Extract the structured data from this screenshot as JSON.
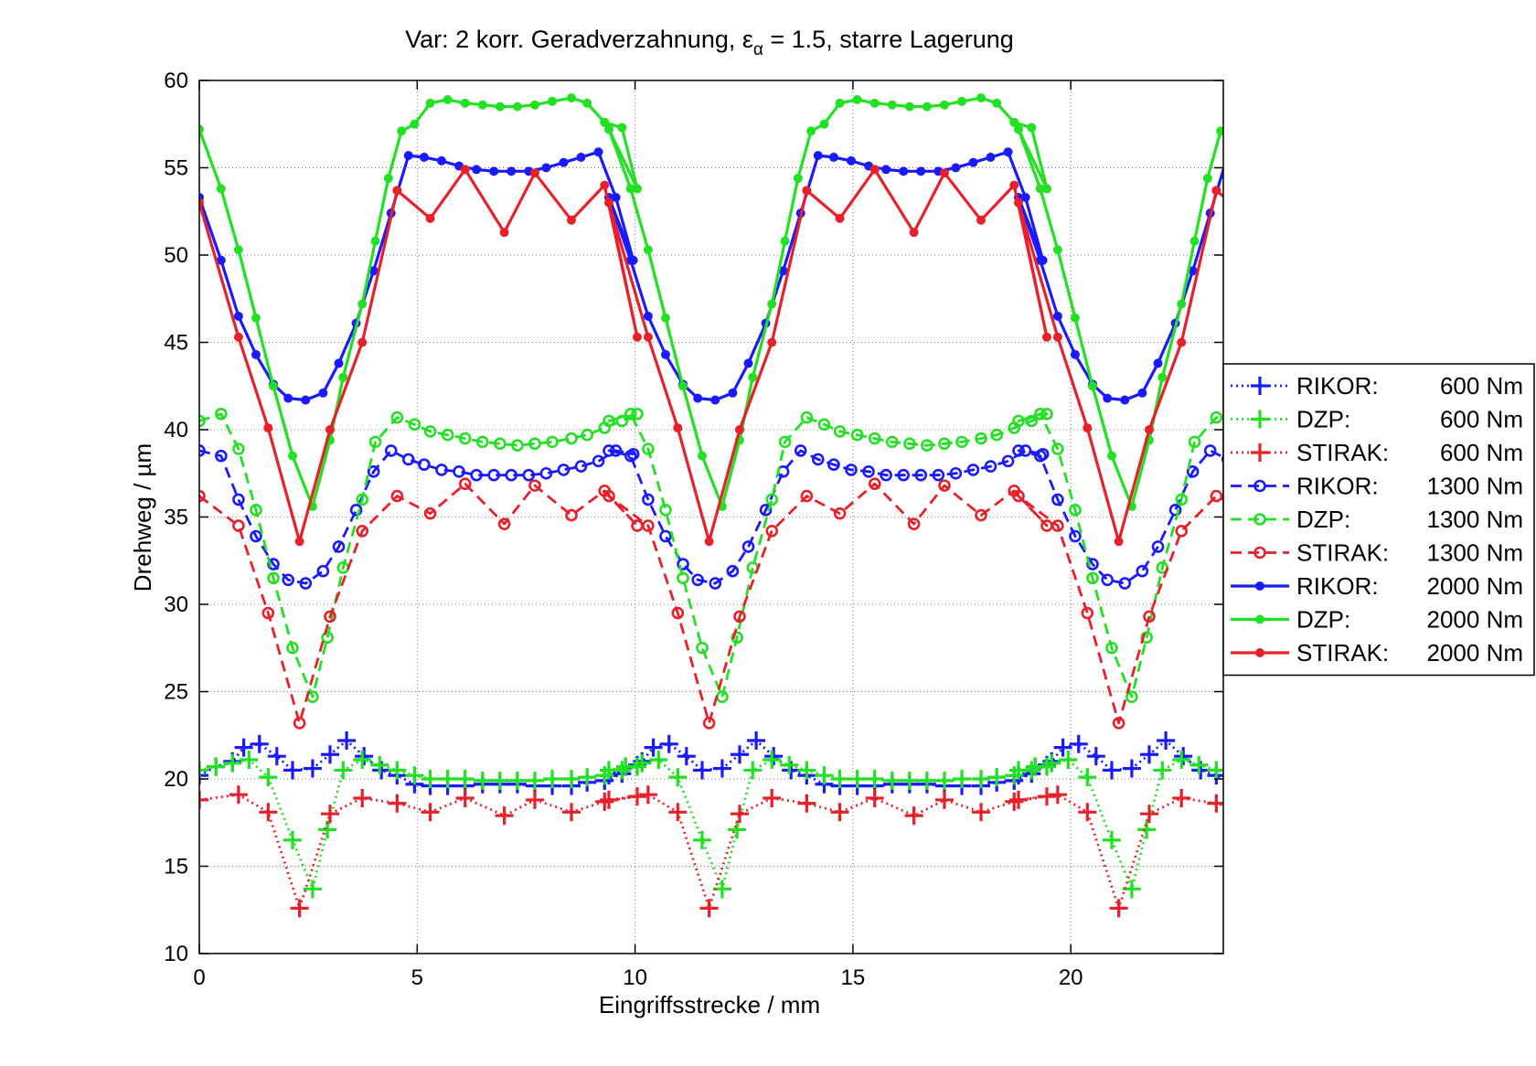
{
  "chart_data": {
    "type": "line",
    "title": {
      "prefix": "Var: 2 korr. Geradverzahnung, ",
      "symbol": "ε",
      "subscript": "α",
      "suffix": " = 1.5, starre Lagerung"
    },
    "xlabel": "Eingriffsstrecke / mm",
    "ylabel": "Drehweg / µm",
    "xlim": [
      0,
      23.5
    ],
    "ylim": [
      10,
      60
    ],
    "xticks": [
      0,
      5,
      10,
      15,
      20
    ],
    "yticks": [
      10,
      15,
      20,
      25,
      30,
      35,
      40,
      45,
      50,
      55,
      60
    ],
    "grid": true,
    "legend_position": "right",
    "colors": {
      "blue": "#1a1aff",
      "green": "#22e022",
      "red": "#e8202a"
    },
    "series": [
      {
        "name": "RIKOR:",
        "torque": "600 Nm",
        "color": "blue",
        "style": "dotted",
        "marker": "plus",
        "points": [
          [
            0.0,
            20.2
          ],
          [
            0.38,
            20.7
          ],
          [
            0.76,
            21.0
          ],
          [
            1.02,
            21.8
          ],
          [
            1.38,
            22.0
          ],
          [
            1.78,
            21.3
          ],
          [
            2.14,
            20.5
          ],
          [
            2.6,
            20.6
          ],
          [
            3.0,
            21.4
          ],
          [
            3.38,
            22.2
          ],
          [
            3.78,
            21.3
          ],
          [
            4.18,
            20.5
          ],
          [
            4.54,
            20.2
          ],
          [
            4.94,
            19.7
          ],
          [
            5.3,
            19.6
          ],
          [
            5.7,
            19.6
          ],
          [
            6.1,
            19.6
          ],
          [
            6.5,
            19.7
          ],
          [
            6.9,
            19.7
          ],
          [
            7.3,
            19.7
          ],
          [
            7.7,
            19.6
          ],
          [
            8.1,
            19.6
          ],
          [
            8.54,
            19.6
          ],
          [
            8.9,
            19.8
          ],
          [
            9.3,
            19.9
          ],
          [
            9.7,
            20.3
          ],
          [
            10.05,
            20.8
          ]
        ]
      },
      {
        "name": "DZP:",
        "torque": "600 Nm",
        "color": "green",
        "style": "dotted",
        "marker": "plus",
        "points": [
          [
            0.0,
            20.5
          ],
          [
            0.38,
            20.7
          ],
          [
            0.76,
            20.9
          ],
          [
            1.14,
            21.1
          ],
          [
            1.58,
            20.1
          ],
          [
            2.14,
            16.5
          ],
          [
            2.6,
            13.7
          ],
          [
            2.94,
            17.1
          ],
          [
            3.3,
            20.5
          ],
          [
            3.74,
            21.1
          ],
          [
            4.14,
            20.8
          ],
          [
            4.54,
            20.5
          ],
          [
            4.94,
            20.2
          ],
          [
            5.3,
            20.0
          ],
          [
            5.7,
            20.0
          ],
          [
            6.1,
            20.0
          ],
          [
            6.5,
            19.9
          ],
          [
            6.9,
            19.9
          ],
          [
            7.3,
            19.9
          ],
          [
            7.7,
            19.9
          ],
          [
            8.1,
            20.0
          ],
          [
            8.54,
            20.0
          ],
          [
            8.9,
            20.1
          ],
          [
            9.3,
            20.2
          ],
          [
            9.7,
            20.5
          ],
          [
            10.05,
            20.7
          ]
        ]
      },
      {
        "name": "STIRAK:",
        "torque": "600 Nm",
        "color": "red",
        "style": "dotted",
        "marker": "plus",
        "points": [
          [
            0.0,
            18.8
          ],
          [
            0.9,
            19.1
          ],
          [
            1.58,
            18.1
          ],
          [
            2.3,
            12.6
          ],
          [
            3.0,
            18.0
          ],
          [
            3.74,
            18.9
          ],
          [
            4.54,
            18.6
          ],
          [
            5.3,
            18.1
          ],
          [
            6.1,
            18.9
          ],
          [
            7.0,
            17.9
          ],
          [
            7.7,
            18.8
          ],
          [
            8.54,
            18.1
          ],
          [
            9.3,
            18.7
          ],
          [
            10.05,
            19.0
          ]
        ]
      },
      {
        "name": "RIKOR:",
        "torque": "1300 Nm",
        "color": "blue",
        "style": "dashed",
        "marker": "circle",
        "points": [
          [
            0.0,
            38.8
          ],
          [
            0.5,
            38.5
          ],
          [
            0.9,
            36.0
          ],
          [
            1.3,
            33.9
          ],
          [
            1.7,
            32.3
          ],
          [
            2.04,
            31.4
          ],
          [
            2.44,
            31.2
          ],
          [
            2.84,
            31.9
          ],
          [
            3.2,
            33.3
          ],
          [
            3.6,
            35.4
          ],
          [
            4.0,
            37.6
          ],
          [
            4.4,
            38.8
          ],
          [
            4.8,
            38.3
          ],
          [
            5.16,
            38.0
          ],
          [
            5.56,
            37.7
          ],
          [
            5.96,
            37.6
          ],
          [
            6.36,
            37.4
          ],
          [
            6.76,
            37.4
          ],
          [
            7.16,
            37.4
          ],
          [
            7.56,
            37.4
          ],
          [
            7.96,
            37.5
          ],
          [
            8.36,
            37.7
          ],
          [
            8.76,
            37.9
          ],
          [
            9.16,
            38.2
          ],
          [
            9.56,
            38.8
          ],
          [
            9.96,
            38.6
          ]
        ]
      },
      {
        "name": "DZP:",
        "torque": "1300 Nm",
        "color": "green",
        "style": "dashed",
        "marker": "circle",
        "points": [
          [
            0.0,
            40.5
          ],
          [
            0.5,
            40.9
          ],
          [
            0.9,
            38.9
          ],
          [
            1.3,
            35.4
          ],
          [
            1.7,
            31.5
          ],
          [
            2.14,
            27.5
          ],
          [
            2.6,
            24.7
          ],
          [
            2.94,
            28.1
          ],
          [
            3.3,
            32.1
          ],
          [
            3.74,
            36.0
          ],
          [
            4.04,
            39.3
          ],
          [
            4.54,
            40.7
          ],
          [
            4.94,
            40.3
          ],
          [
            5.3,
            39.9
          ],
          [
            5.7,
            39.7
          ],
          [
            6.1,
            39.5
          ],
          [
            6.5,
            39.3
          ],
          [
            6.9,
            39.2
          ],
          [
            7.3,
            39.1
          ],
          [
            7.7,
            39.2
          ],
          [
            8.1,
            39.3
          ],
          [
            8.54,
            39.5
          ],
          [
            8.9,
            39.7
          ],
          [
            9.3,
            40.1
          ],
          [
            9.7,
            40.5
          ],
          [
            10.05,
            40.9
          ]
        ]
      },
      {
        "name": "STIRAK:",
        "torque": "1300 Nm",
        "color": "red",
        "style": "dashed",
        "marker": "circle",
        "points": [
          [
            0.0,
            36.2
          ],
          [
            0.9,
            34.5
          ],
          [
            1.58,
            29.5
          ],
          [
            2.3,
            23.2
          ],
          [
            3.0,
            29.3
          ],
          [
            3.74,
            34.2
          ],
          [
            4.54,
            36.2
          ],
          [
            5.3,
            35.2
          ],
          [
            6.1,
            36.9
          ],
          [
            7.0,
            34.6
          ],
          [
            7.7,
            36.8
          ],
          [
            8.54,
            35.1
          ],
          [
            9.3,
            36.5
          ],
          [
            10.05,
            34.5
          ]
        ]
      },
      {
        "name": "RIKOR:",
        "torque": "2000 Nm",
        "color": "blue",
        "style": "solid",
        "marker": "dot",
        "points": [
          [
            0.0,
            53.3
          ],
          [
            0.5,
            49.7
          ],
          [
            0.9,
            46.5
          ],
          [
            1.3,
            44.3
          ],
          [
            1.7,
            42.6
          ],
          [
            2.04,
            41.8
          ],
          [
            2.44,
            41.7
          ],
          [
            2.84,
            42.1
          ],
          [
            3.2,
            43.8
          ],
          [
            3.6,
            46.1
          ],
          [
            4.0,
            49.1
          ],
          [
            4.4,
            52.4
          ],
          [
            4.8,
            55.7
          ],
          [
            5.16,
            55.6
          ],
          [
            5.56,
            55.4
          ],
          [
            5.96,
            55.1
          ],
          [
            6.36,
            54.9
          ],
          [
            6.76,
            54.8
          ],
          [
            7.16,
            54.8
          ],
          [
            7.56,
            54.8
          ],
          [
            7.96,
            55.0
          ],
          [
            8.36,
            55.3
          ],
          [
            8.76,
            55.6
          ],
          [
            9.16,
            55.9
          ],
          [
            9.56,
            53.3
          ],
          [
            9.96,
            49.7
          ]
        ]
      },
      {
        "name": "DZP:",
        "torque": "2000 Nm",
        "color": "green",
        "style": "solid",
        "marker": "dot",
        "points": [
          [
            0.0,
            57.2
          ],
          [
            0.5,
            53.8
          ],
          [
            0.9,
            50.3
          ],
          [
            1.3,
            46.4
          ],
          [
            1.7,
            42.5
          ],
          [
            2.14,
            38.5
          ],
          [
            2.6,
            35.6
          ],
          [
            3.0,
            39.4
          ],
          [
            3.3,
            43.0
          ],
          [
            3.74,
            47.2
          ],
          [
            4.04,
            50.8
          ],
          [
            4.34,
            54.4
          ],
          [
            4.64,
            57.1
          ],
          [
            4.94,
            57.5
          ],
          [
            5.3,
            58.7
          ],
          [
            5.7,
            58.9
          ],
          [
            6.1,
            58.7
          ],
          [
            6.5,
            58.6
          ],
          [
            6.9,
            58.5
          ],
          [
            7.3,
            58.5
          ],
          [
            7.7,
            58.6
          ],
          [
            8.1,
            58.8
          ],
          [
            8.54,
            59.0
          ],
          [
            8.9,
            58.7
          ],
          [
            9.3,
            57.6
          ],
          [
            9.7,
            57.3
          ],
          [
            10.05,
            53.8
          ]
        ]
      },
      {
        "name": "STIRAK:",
        "torque": "2000 Nm",
        "color": "red",
        "style": "solid",
        "marker": "dot",
        "points": [
          [
            0.0,
            53.0
          ],
          [
            0.9,
            45.3
          ],
          [
            1.58,
            40.1
          ],
          [
            2.3,
            33.6
          ],
          [
            3.0,
            40.0
          ],
          [
            3.74,
            45.0
          ],
          [
            4.54,
            53.7
          ],
          [
            5.3,
            52.1
          ],
          [
            6.1,
            54.9
          ],
          [
            7.0,
            51.3
          ],
          [
            7.7,
            54.7
          ],
          [
            8.54,
            52.0
          ],
          [
            9.3,
            54.0
          ],
          [
            10.05,
            45.3
          ]
        ]
      }
    ],
    "period": 9.4,
    "repetitions": 3
  }
}
